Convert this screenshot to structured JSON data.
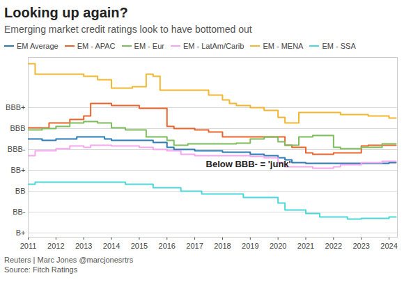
{
  "chart_data": {
    "type": "line",
    "title": "Looking up again?",
    "subtitle": "Emerging market credit ratings look to have bottomed out",
    "byline": "Reuters | Marc Jones @marcjonesrtrs",
    "source": "Source: Fitch Ratings",
    "line_style": "step",
    "grid": true,
    "legend": "top",
    "xlim": [
      2011,
      2024.3
    ],
    "xticks": [
      2011,
      2012,
      2013,
      2014,
      2015,
      2016,
      2017,
      2018,
      2019,
      2020,
      2021,
      2022,
      2023,
      2024
    ],
    "ylim": [
      1.8,
      10.4
    ],
    "yticks": [
      {
        "value": 8,
        "label": "BBB+"
      },
      {
        "value": 7,
        "label": "BBB"
      },
      {
        "value": 6,
        "label": "BBB-"
      },
      {
        "value": 5,
        "label": "BB+"
      },
      {
        "value": 4,
        "label": "BB"
      },
      {
        "value": 3,
        "label": "BB-"
      },
      {
        "value": 2,
        "label": "B+"
      }
    ],
    "annotations": [
      {
        "text": "Below BBB- = 'junk'",
        "x": 2017.4,
        "y": 5.3
      }
    ],
    "x": [
      2011,
      2011.25,
      2011.5,
      2011.75,
      2012,
      2012.25,
      2012.5,
      2012.75,
      2013,
      2013.25,
      2013.5,
      2013.75,
      2014,
      2014.25,
      2014.5,
      2014.75,
      2015,
      2015.25,
      2015.5,
      2015.75,
      2016,
      2016.25,
      2016.5,
      2016.75,
      2017,
      2017.25,
      2017.5,
      2017.75,
      2018,
      2018.25,
      2018.5,
      2018.75,
      2019,
      2019.25,
      2019.5,
      2019.75,
      2020,
      2020.25,
      2020.5,
      2020.75,
      2021,
      2021.25,
      2021.5,
      2021.75,
      2022,
      2022.25,
      2022.5,
      2022.75,
      2023,
      2023.25,
      2023.5,
      2023.75,
      2024,
      2024.25
    ],
    "series": [
      {
        "name": "EM Average",
        "color": "#2b7bb5",
        "values": [
          6.5,
          6.5,
          6.43,
          6.43,
          6.5,
          6.5,
          6.5,
          6.6,
          6.6,
          6.6,
          6.6,
          6.5,
          6.43,
          6.43,
          6.43,
          6.43,
          6.43,
          6.43,
          6.33,
          6.33,
          6.1,
          6.0,
          6.0,
          6.0,
          5.93,
          5.93,
          5.93,
          5.93,
          5.87,
          5.87,
          5.87,
          5.87,
          5.77,
          5.77,
          5.7,
          5.7,
          5.6,
          5.5,
          5.37,
          5.37,
          5.33,
          5.33,
          5.33,
          5.33,
          5.33,
          5.33,
          5.33,
          5.33,
          5.33,
          5.33,
          5.33,
          5.33,
          5.37,
          5.37
        ]
      },
      {
        "name": "EM - APAC",
        "color": "#e8642c",
        "values": [
          7.03,
          7.03,
          7.03,
          7.27,
          7.27,
          7.27,
          7.43,
          7.43,
          7.6,
          8.2,
          8.2,
          8.2,
          8.1,
          8.1,
          8.1,
          8.1,
          7.97,
          7.97,
          7.97,
          7.97,
          7.1,
          7.0,
          7.0,
          7.0,
          6.93,
          6.93,
          6.83,
          6.83,
          6.6,
          6.6,
          6.6,
          6.6,
          6.6,
          6.6,
          6.6,
          6.6,
          6.6,
          6.2,
          6.1,
          6.1,
          5.83,
          5.77,
          5.77,
          5.77,
          5.83,
          5.83,
          5.83,
          5.83,
          6.17,
          6.2,
          6.2,
          6.2,
          6.2,
          6.2
        ]
      },
      {
        "name": "EM - Eur",
        "color": "#7dbd5b",
        "values": [
          6.93,
          6.93,
          7.0,
          7.0,
          7.1,
          7.1,
          7.27,
          7.27,
          7.33,
          7.33,
          7.27,
          7.27,
          7.03,
          7.03,
          6.93,
          6.93,
          6.93,
          6.6,
          6.6,
          6.6,
          6.43,
          6.2,
          6.2,
          6.27,
          6.27,
          6.27,
          6.27,
          6.27,
          6.27,
          6.27,
          6.3,
          6.3,
          6.5,
          6.5,
          6.6,
          6.6,
          6.37,
          6.2,
          6.2,
          6.6,
          6.6,
          6.67,
          6.67,
          6.67,
          6.1,
          6.03,
          6.03,
          6.03,
          6.1,
          6.1,
          6.1,
          6.27,
          6.27,
          6.27
        ]
      },
      {
        "name": "EM - LatAm/Carib",
        "color": "#f4a6ef",
        "values": [
          5.7,
          5.93,
          5.93,
          5.93,
          6.03,
          6.03,
          6.17,
          6.17,
          6.1,
          6.2,
          6.2,
          6.2,
          6.17,
          6.17,
          6.17,
          6.17,
          6.1,
          6.1,
          6.0,
          6.0,
          5.93,
          5.93,
          5.77,
          5.77,
          5.7,
          5.7,
          5.7,
          5.7,
          5.7,
          5.7,
          5.7,
          5.7,
          5.67,
          5.67,
          5.6,
          5.6,
          5.37,
          5.17,
          5.17,
          5.17,
          5.17,
          5.1,
          5.1,
          5.1,
          5.17,
          5.27,
          5.27,
          5.27,
          5.37,
          5.37,
          5.37,
          5.43,
          5.43,
          5.43
        ]
      },
      {
        "name": "EM - MENA",
        "color": "#f2b630",
        "values": [
          10.1,
          9.6,
          9.6,
          9.6,
          9.6,
          9.6,
          9.6,
          9.6,
          9.5,
          9.5,
          9.33,
          9.33,
          8.93,
          8.93,
          8.93,
          9.0,
          9.0,
          9.6,
          9.5,
          8.83,
          8.83,
          8.83,
          8.83,
          8.83,
          8.83,
          8.83,
          8.6,
          8.6,
          8.37,
          8.2,
          8.1,
          8.1,
          8.0,
          8.0,
          7.87,
          7.87,
          7.53,
          7.27,
          7.27,
          7.77,
          7.77,
          7.77,
          7.77,
          7.77,
          7.77,
          7.67,
          7.67,
          7.67,
          7.67,
          7.6,
          7.6,
          7.6,
          7.5,
          7.5
        ]
      },
      {
        "name": "EM - SSA",
        "color": "#4dd8d8",
        "values": [
          4.33,
          4.43,
          4.43,
          4.43,
          4.43,
          4.43,
          4.43,
          4.43,
          4.43,
          4.43,
          4.43,
          4.43,
          4.43,
          4.43,
          4.33,
          4.33,
          4.33,
          4.33,
          4.17,
          4.17,
          4.17,
          4.17,
          4.0,
          4.0,
          4.0,
          3.87,
          3.87,
          3.87,
          3.87,
          3.87,
          3.87,
          3.7,
          3.7,
          3.7,
          3.7,
          3.7,
          3.43,
          3.1,
          3.1,
          3.1,
          2.93,
          2.93,
          2.77,
          2.77,
          2.77,
          2.77,
          2.67,
          2.67,
          2.7,
          2.7,
          2.7,
          2.7,
          2.77,
          2.77
        ]
      }
    ]
  }
}
